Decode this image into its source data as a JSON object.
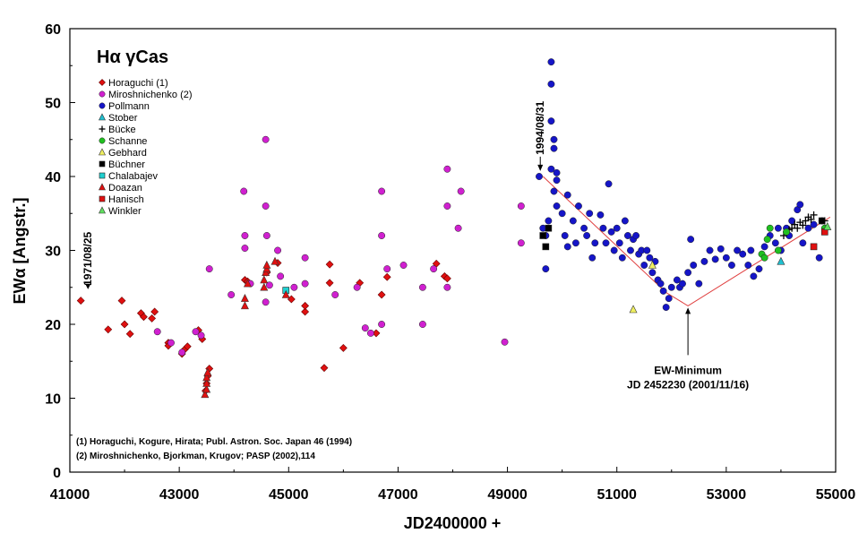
{
  "chart_data": {
    "type": "scatter",
    "title": "Hα γCas",
    "xlabel": "JD2400000 +",
    "ylabel": "EWα [Angstr.]",
    "xlim": [
      41000,
      55000
    ],
    "ylim": [
      0,
      60
    ],
    "xticks": [
      41000,
      43000,
      45000,
      47000,
      49000,
      51000,
      53000,
      55000
    ],
    "yticks": [
      0,
      10,
      20,
      30,
      40,
      50,
      60
    ],
    "legend_position": "top-left",
    "series": [
      {
        "name": "Horaguchi (1)",
        "marker": "diamond",
        "color": "#e01010",
        "points": [
          [
            41200,
            23.2
          ],
          [
            41700,
            19.3
          ],
          [
            41950,
            23.2
          ],
          [
            42000,
            20
          ],
          [
            42100,
            18.7
          ],
          [
            42300,
            21.5
          ],
          [
            42350,
            21
          ],
          [
            42500,
            20.8
          ],
          [
            42550,
            21.7
          ],
          [
            42800,
            17.5
          ],
          [
            42800,
            17.1
          ],
          [
            43050,
            16
          ],
          [
            43100,
            16.6
          ],
          [
            43150,
            17
          ],
          [
            43350,
            19.2
          ],
          [
            43420,
            18
          ],
          [
            43480,
            11
          ],
          [
            43500,
            12
          ],
          [
            43520,
            13
          ],
          [
            43550,
            14
          ],
          [
            44200,
            26
          ],
          [
            44250,
            25.8
          ],
          [
            44600,
            27
          ],
          [
            44800,
            28.3
          ],
          [
            45050,
            23.4
          ],
          [
            45300,
            21.7
          ],
          [
            45300,
            22.5
          ],
          [
            45750,
            28.1
          ],
          [
            45750,
            25.6
          ],
          [
            45650,
            14.1
          ],
          [
            46000,
            16.8
          ],
          [
            46300,
            25.6
          ],
          [
            46600,
            18.8
          ],
          [
            46700,
            24
          ],
          [
            46800,
            26.4
          ],
          [
            47700,
            28.2
          ],
          [
            47850,
            26.5
          ],
          [
            47900,
            26.2
          ]
        ]
      },
      {
        "name": "Miroshnichenko (2)",
        "marker": "circle",
        "color": "#d020d0",
        "points": [
          [
            42600,
            19
          ],
          [
            42850,
            17.5
          ],
          [
            43050,
            16.2
          ],
          [
            43300,
            19
          ],
          [
            43400,
            18.5
          ],
          [
            43550,
            27.5
          ],
          [
            43950,
            24
          ],
          [
            44180,
            38
          ],
          [
            44200,
            32
          ],
          [
            44200,
            30.3
          ],
          [
            44300,
            25.5
          ],
          [
            44580,
            45
          ],
          [
            44580,
            36
          ],
          [
            44600,
            32
          ],
          [
            44650,
            25.3
          ],
          [
            44580,
            23
          ],
          [
            44800,
            30
          ],
          [
            44850,
            26.5
          ],
          [
            45100,
            25
          ],
          [
            45300,
            29
          ],
          [
            45300,
            25.5
          ],
          [
            45850,
            24
          ],
          [
            46250,
            25
          ],
          [
            46400,
            19.5
          ],
          [
            46500,
            18.8
          ],
          [
            46700,
            38
          ],
          [
            46700,
            32
          ],
          [
            46800,
            27.5
          ],
          [
            46700,
            20
          ],
          [
            47100,
            28
          ],
          [
            47450,
            25
          ],
          [
            47650,
            27.5
          ],
          [
            47450,
            20
          ],
          [
            47900,
            41
          ],
          [
            47900,
            36
          ],
          [
            47900,
            25
          ],
          [
            48150,
            38
          ],
          [
            48100,
            33
          ],
          [
            48950,
            17.6
          ],
          [
            49250,
            36
          ],
          [
            49250,
            31
          ]
        ]
      },
      {
        "name": "Pollmann",
        "marker": "circle",
        "color": "#1515c8",
        "points": [
          [
            49580,
            40
          ],
          [
            49650,
            33
          ],
          [
            49700,
            32
          ],
          [
            49700,
            27.5
          ],
          [
            49750,
            34
          ],
          [
            49800,
            55.5
          ],
          [
            49800,
            52.5
          ],
          [
            49800,
            47.5
          ],
          [
            49850,
            45
          ],
          [
            49850,
            43.8
          ],
          [
            49800,
            41
          ],
          [
            49900,
            40.5
          ],
          [
            49900,
            39.5
          ],
          [
            49850,
            38
          ],
          [
            49900,
            36
          ],
          [
            50000,
            35
          ],
          [
            50050,
            32
          ],
          [
            50100,
            37.5
          ],
          [
            50100,
            30.5
          ],
          [
            50200,
            34
          ],
          [
            50250,
            31
          ],
          [
            50300,
            36
          ],
          [
            50400,
            33
          ],
          [
            50450,
            32
          ],
          [
            50500,
            35
          ],
          [
            50550,
            29
          ],
          [
            50600,
            31
          ],
          [
            50700,
            34.8
          ],
          [
            50750,
            33
          ],
          [
            50800,
            31
          ],
          [
            50850,
            39
          ],
          [
            50900,
            32.5
          ],
          [
            50950,
            30
          ],
          [
            51000,
            33
          ],
          [
            51050,
            31
          ],
          [
            51100,
            29
          ],
          [
            51150,
            34
          ],
          [
            51200,
            32
          ],
          [
            51250,
            30
          ],
          [
            51300,
            31.5
          ],
          [
            51350,
            32
          ],
          [
            51400,
            29.5
          ],
          [
            51450,
            30
          ],
          [
            51500,
            28
          ],
          [
            51550,
            30
          ],
          [
            51600,
            29
          ],
          [
            51650,
            27
          ],
          [
            51700,
            28.5
          ],
          [
            51750,
            26
          ],
          [
            51800,
            25.5
          ],
          [
            51850,
            24.5
          ],
          [
            51900,
            22.3
          ],
          [
            51950,
            23.5
          ],
          [
            52000,
            25
          ],
          [
            52100,
            26
          ],
          [
            52150,
            25
          ],
          [
            52200,
            25.5
          ],
          [
            52300,
            27
          ],
          [
            52350,
            31.5
          ],
          [
            52400,
            28
          ],
          [
            52500,
            25.5
          ],
          [
            52600,
            28.5
          ],
          [
            52700,
            30
          ],
          [
            52800,
            28.8
          ],
          [
            52900,
            30.2
          ],
          [
            53000,
            29
          ],
          [
            53100,
            28
          ],
          [
            53200,
            30
          ],
          [
            53300,
            29.5
          ],
          [
            53400,
            28
          ],
          [
            53450,
            30
          ],
          [
            53500,
            26.5
          ],
          [
            53600,
            27.5
          ],
          [
            53700,
            30.5
          ],
          [
            53800,
            32
          ],
          [
            53900,
            31
          ],
          [
            53950,
            33
          ],
          [
            54000,
            30
          ],
          [
            54100,
            33
          ],
          [
            54150,
            32
          ],
          [
            54200,
            34
          ],
          [
            54300,
            35.5
          ],
          [
            54350,
            36.2
          ],
          [
            54400,
            31
          ],
          [
            54500,
            33
          ],
          [
            54600,
            33.5
          ],
          [
            54700,
            29
          ],
          [
            54750,
            34
          ]
        ]
      },
      {
        "name": "Stober",
        "marker": "triangle",
        "color": "#20c0d0",
        "points": [
          [
            54000,
            28.5
          ]
        ]
      },
      {
        "name": "Bücke",
        "marker": "plus",
        "color": "#000000",
        "points": [
          [
            54050,
            32
          ],
          [
            54100,
            32.5
          ],
          [
            54150,
            32.8
          ],
          [
            54200,
            33
          ],
          [
            54250,
            33.5
          ],
          [
            54300,
            33
          ],
          [
            54350,
            33.8
          ],
          [
            54400,
            33.4
          ],
          [
            54450,
            34
          ],
          [
            54500,
            34.5
          ],
          [
            54550,
            34.2
          ],
          [
            54600,
            34.8
          ],
          [
            54800,
            34
          ]
        ]
      },
      {
        "name": "Schanne",
        "marker": "circle",
        "color": "#20c020",
        "points": [
          [
            53650,
            29.5
          ],
          [
            53700,
            29
          ],
          [
            53750,
            31.5
          ],
          [
            53800,
            33
          ],
          [
            53950,
            30
          ],
          [
            54100,
            32.5
          ],
          [
            54800,
            33
          ]
        ]
      },
      {
        "name": "Gebhard",
        "marker": "triangle",
        "color": "#f0f060",
        "points": [
          [
            51300,
            22
          ],
          [
            51650,
            28
          ]
        ]
      },
      {
        "name": "Büchner",
        "marker": "square",
        "color": "#000000",
        "points": [
          [
            49650,
            32
          ],
          [
            49700,
            30.5
          ],
          [
            49750,
            33
          ],
          [
            54750,
            34
          ]
        ]
      },
      {
        "name": "Chalabajev",
        "marker": "square",
        "color": "#20d0d0",
        "points": [
          [
            44950,
            24.6
          ]
        ]
      },
      {
        "name": "Doazan",
        "marker": "triangle",
        "color": "#e01010",
        "points": [
          [
            43470,
            10.5
          ],
          [
            43500,
            11.2
          ],
          [
            43500,
            12
          ],
          [
            43500,
            12.8
          ],
          [
            43520,
            13.5
          ],
          [
            44200,
            22.5
          ],
          [
            44200,
            23.5
          ],
          [
            44250,
            25.5
          ],
          [
            44550,
            25
          ],
          [
            44550,
            26
          ],
          [
            44580,
            27
          ],
          [
            44600,
            27.5
          ],
          [
            44600,
            28
          ],
          [
            44750,
            28.5
          ],
          [
            44950,
            24
          ]
        ]
      },
      {
        "name": "Hanisch",
        "marker": "square",
        "color": "#e01010",
        "points": [
          [
            54600,
            30.5
          ],
          [
            54800,
            32.5
          ]
        ]
      },
      {
        "name": "Winkler",
        "marker": "triangle",
        "color": "#60e060",
        "points": [
          [
            54850,
            33.2
          ]
        ]
      }
    ],
    "trend_line": {
      "color": "#e04040",
      "points": [
        [
          49650,
          40
        ],
        [
          51900,
          24.3
        ],
        [
          52300,
          22.5
        ],
        [
          54900,
          34.5
        ]
      ]
    },
    "annotations": [
      {
        "label": "1971/08/25",
        "x": 41200,
        "y": 24.5
      },
      {
        "label": "1994/08/31",
        "x": 49600,
        "y": 40.5
      },
      {
        "label": "EW-Minimum",
        "x": 52300,
        "y": 22.5
      },
      {
        "label": "JD 2452230 (2001/11/16)",
        "x": 52300,
        "y": 22.5
      }
    ],
    "references": [
      "(1) Horaguchi, Kogure, Hirata; Publ. Astron. Soc. Japan 46 (1994)",
      "(2) Miroshnichenko, Bjorkman, Krugov; PASP (2002),114"
    ]
  }
}
